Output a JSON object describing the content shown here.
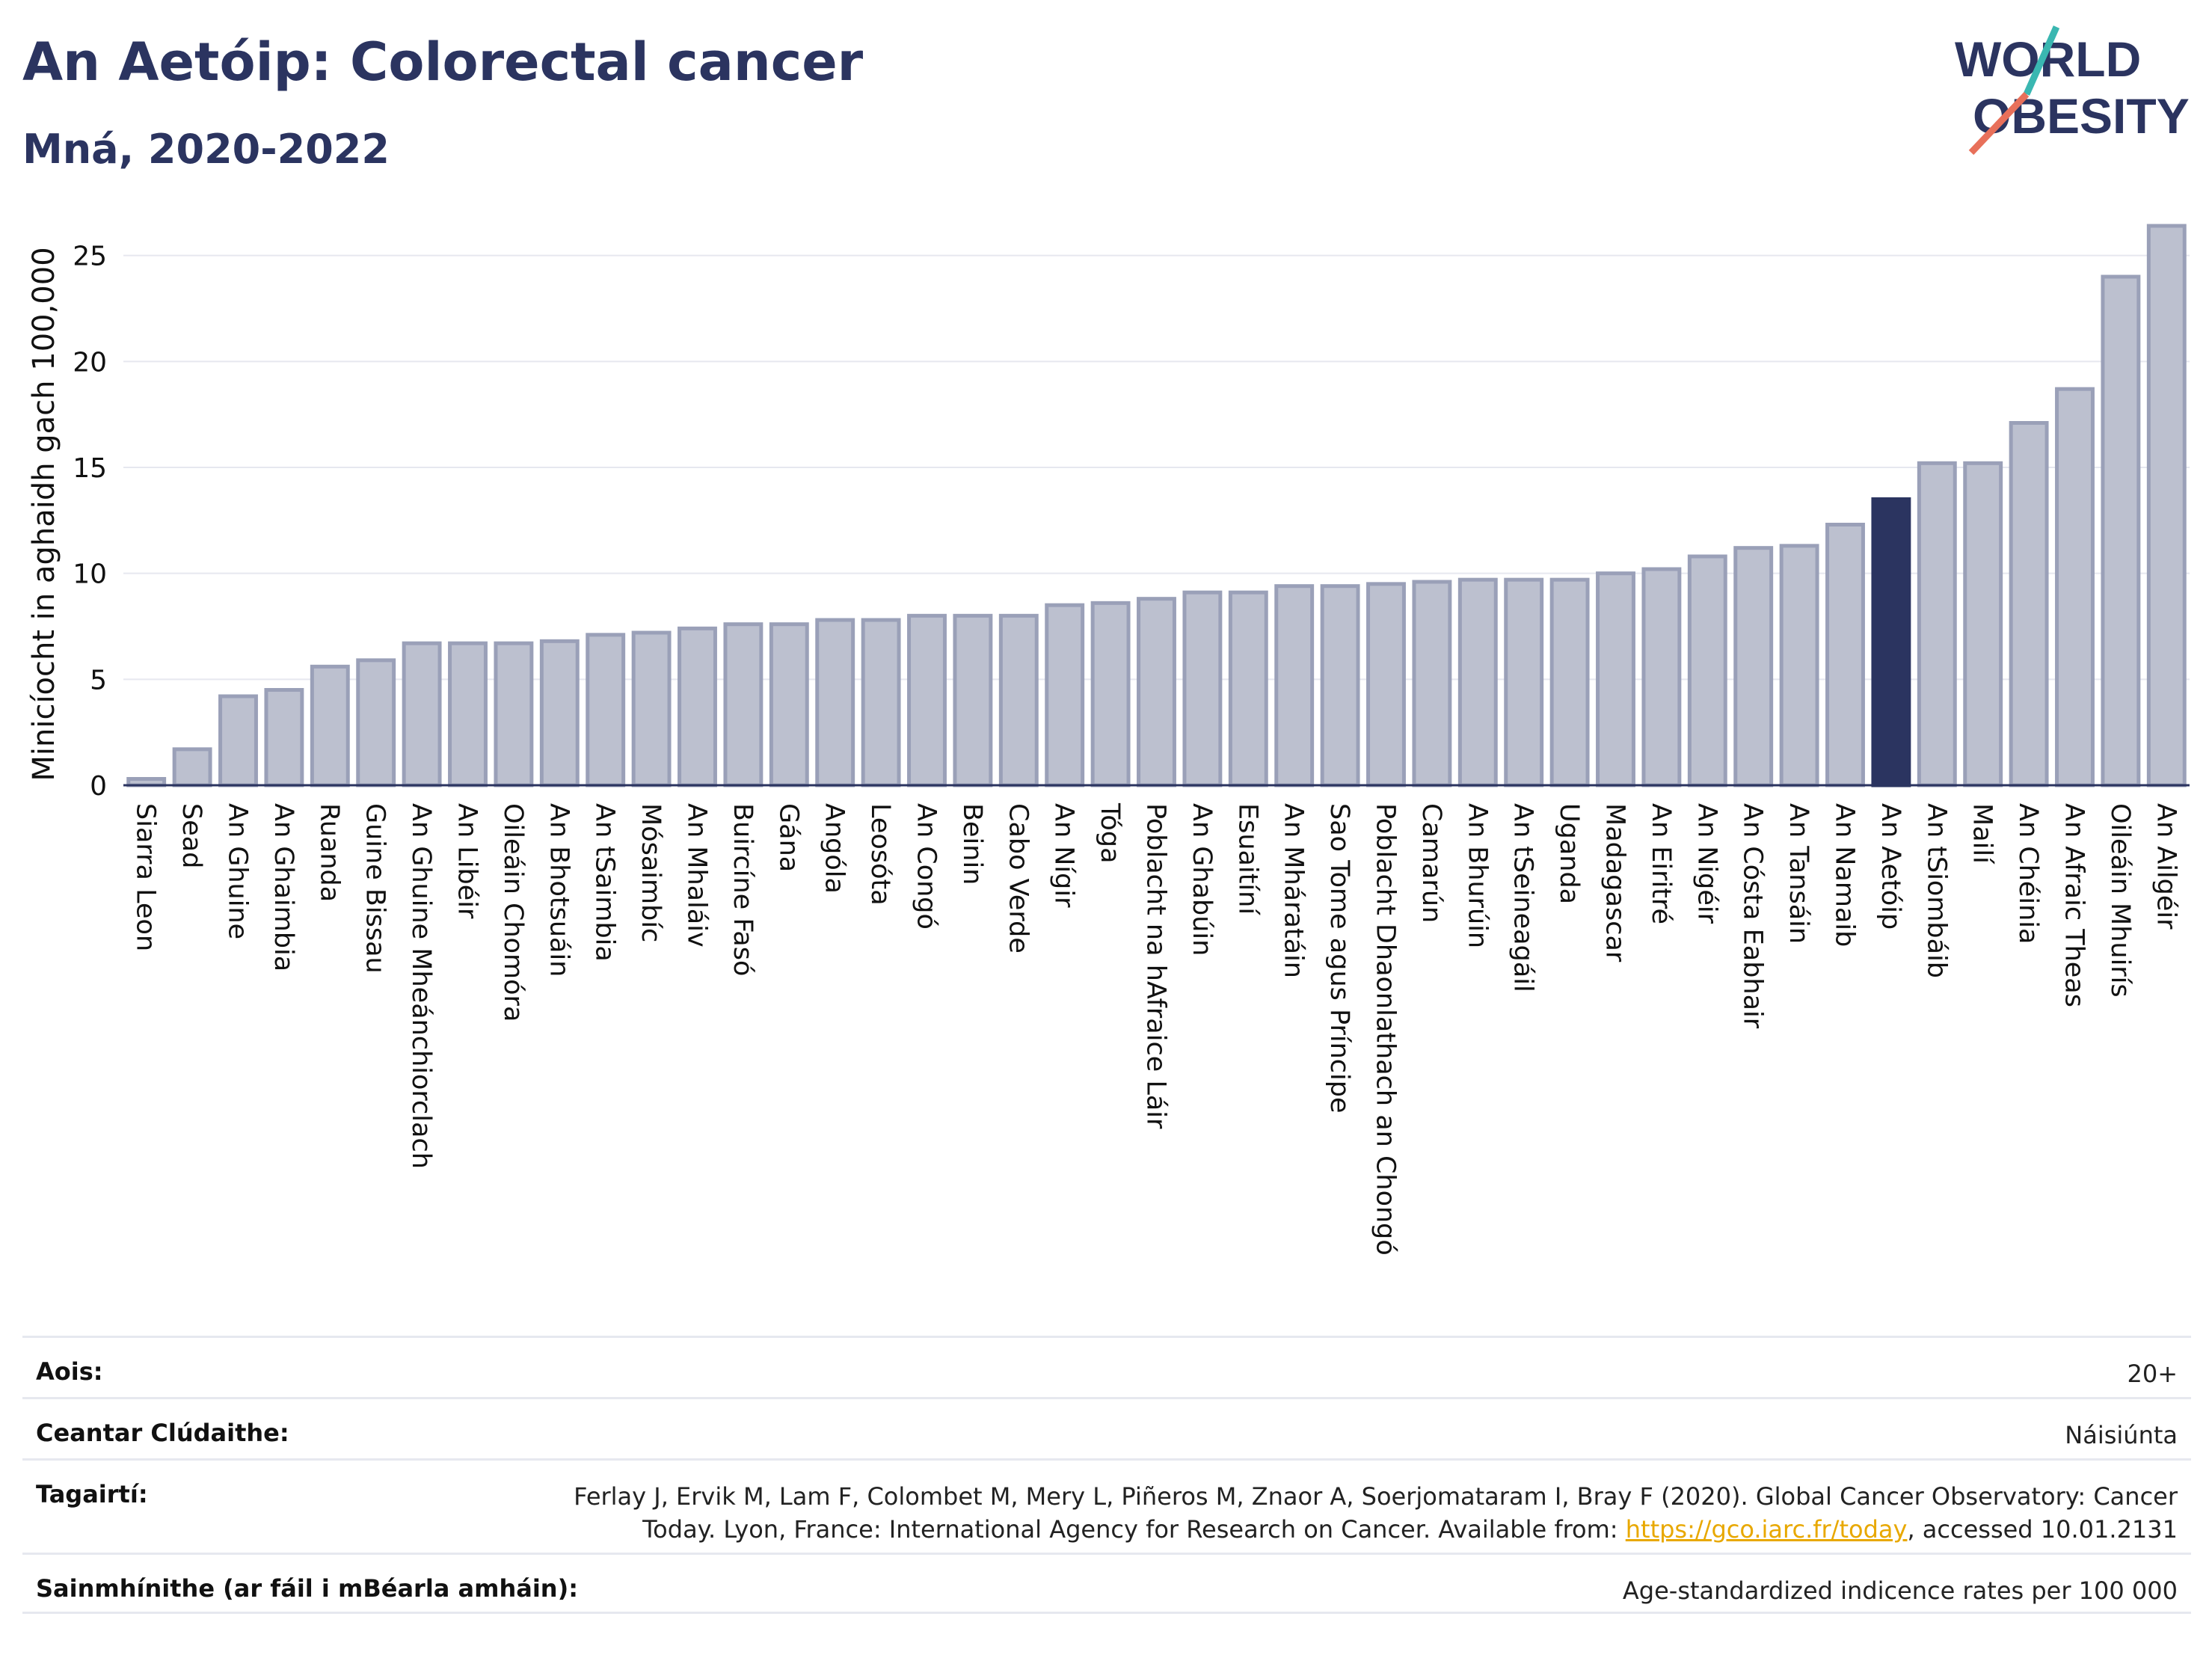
{
  "header": {
    "title": "An Aetóip: Colorectal cancer",
    "subtitle": "Mná, 2020-2022"
  },
  "logo": {
    "line1": "WORLD",
    "line2": "OBESITY",
    "accent_teal": "#3ab7b1",
    "accent_red": "#e8705a"
  },
  "colors": {
    "bar": "#bcc0cf",
    "bar_border": "#9aa0b8",
    "highlight": "#2b3460",
    "grid": "#e6e8ef",
    "axis": "#2b3460"
  },
  "chart_data": {
    "type": "bar",
    "ylabel": "Minicíocht in aghaidh gach 100,000",
    "ylim": [
      0,
      27
    ],
    "yticks": [
      0,
      5,
      10,
      15,
      20,
      25
    ],
    "grid": true,
    "highlight": "An Aetóip",
    "categories": [
      "Siarra Leon",
      "Sead",
      "An Ghuine",
      "An Ghaimbia",
      "Ruanda",
      "Guine Bissau",
      "An Ghuine Mheánchiorclach",
      "An Libéir",
      "Oileáin Chomóra",
      "An Bhotsuáin",
      "An tSaimbia",
      "Mósaimbíc",
      "An Mhaláiv",
      "Buircíne Fasó",
      "Gána",
      "Angóla",
      "Leosóta",
      "An Congó",
      "Beinin",
      "Cabo Verde",
      "An Nígir",
      "Tóga",
      "Poblacht na hAfraice Láir",
      "An Ghabúin",
      "Esuaitíní",
      "An Mháratáin",
      "Sao Tome agus Príncipe",
      "Poblacht Dhaonlathach an Chongó",
      "Camarún",
      "An Bhurúin",
      "An tSeineagáil",
      "Uganda",
      "Madagascar",
      "An Eiritré",
      "An Nigéir",
      "An Cósta Eabhair",
      "An Tansáin",
      "An Namaib",
      "An Aetóip",
      "An tSiombáib",
      "Mailí",
      "An Chéinia",
      "An Afraic Theas",
      "Oileáin Mhuirís",
      "An Ailgéir"
    ],
    "values": [
      0.3,
      1.7,
      4.2,
      4.5,
      5.6,
      5.9,
      6.7,
      6.7,
      6.7,
      6.8,
      7.1,
      7.2,
      7.4,
      7.6,
      7.6,
      7.8,
      7.8,
      8.0,
      8.0,
      8.0,
      8.5,
      8.6,
      8.8,
      9.1,
      9.1,
      9.4,
      9.4,
      9.5,
      9.6,
      9.7,
      9.7,
      9.7,
      10.0,
      10.2,
      10.8,
      11.2,
      11.3,
      12.3,
      13.5,
      15.2,
      15.2,
      17.1,
      18.7,
      24.0,
      26.4
    ]
  },
  "footer": {
    "age_label": "Aois:",
    "age_value": "20+",
    "coverage_label": "Ceantar Clúdaithe:",
    "coverage_value": "Náisiúnta",
    "ref_label": "Tagairtí:",
    "ref_text_1": "Ferlay J, Ervik M, Lam F, Colombet M, Mery L, Piñeros M, Znaor A, Soerjomataram I, Bray F (2020). Global Cancer Observatory: Cancer Today. Lyon, France: International Agency for Research on Cancer. Available from: ",
    "ref_link": "https://gco.iarc.fr/today",
    "ref_text_2": ", accessed 10.01.2131",
    "def_label": "Sainmhínithe (ar fáil i mBéarla amháin):",
    "def_value": "Age-standardized indicence rates per 100 000"
  }
}
